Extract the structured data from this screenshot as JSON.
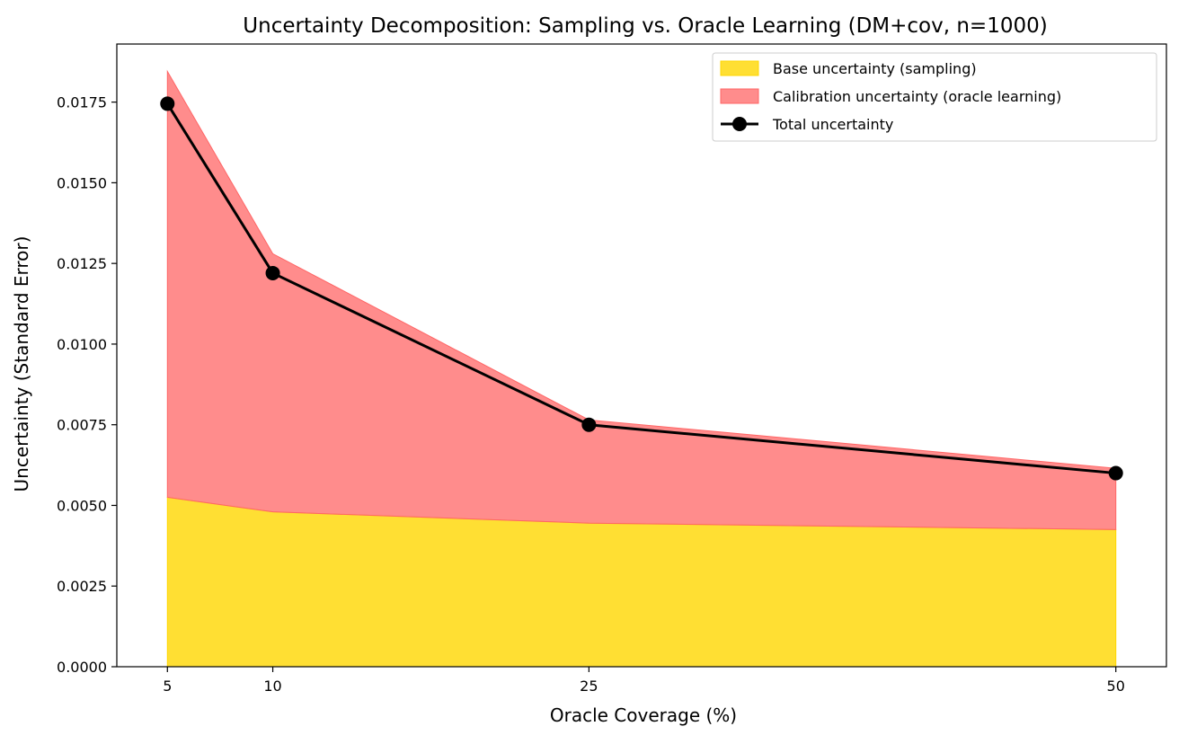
{
  "chart_data": {
    "type": "area",
    "title": "Uncertainty Decomposition: Sampling vs. Oracle Learning (DM+cov, n=1000)",
    "xlabel": "Oracle Coverage (%)",
    "ylabel": "Uncertainty (Standard Error)",
    "x": [
      5,
      10,
      25,
      50
    ],
    "x_tick_labels": [
      "5",
      "10",
      "25",
      "50"
    ],
    "xlim": [
      2.6,
      52.4
    ],
    "ylim": [
      0,
      0.0193
    ],
    "y_ticks": [
      0,
      0.0025,
      0.005,
      0.0075,
      0.01,
      0.0125,
      0.015,
      0.0175
    ],
    "y_tick_labels": [
      "0.0000",
      "0.0025",
      "0.0050",
      "0.0075",
      "0.0100",
      "0.0125",
      "0.0150",
      "0.0175"
    ],
    "series": [
      {
        "name": "Base uncertainty (sampling)",
        "kind": "stacked-area",
        "values": [
          0.00525,
          0.0048,
          0.00445,
          0.00425
        ],
        "color": "#FFD700"
      },
      {
        "name": "Calibration uncertainty (oracle learning)",
        "kind": "stacked-area",
        "values": [
          0.0132,
          0.008,
          0.0032,
          0.0019
        ],
        "color": "#FF6666"
      },
      {
        "name": "Total uncertainty",
        "kind": "line-markers",
        "values": [
          0.01745,
          0.0122,
          0.0075,
          0.006
        ],
        "color": "#000000"
      }
    ],
    "legend_position": "top-right",
    "grid": false
  }
}
